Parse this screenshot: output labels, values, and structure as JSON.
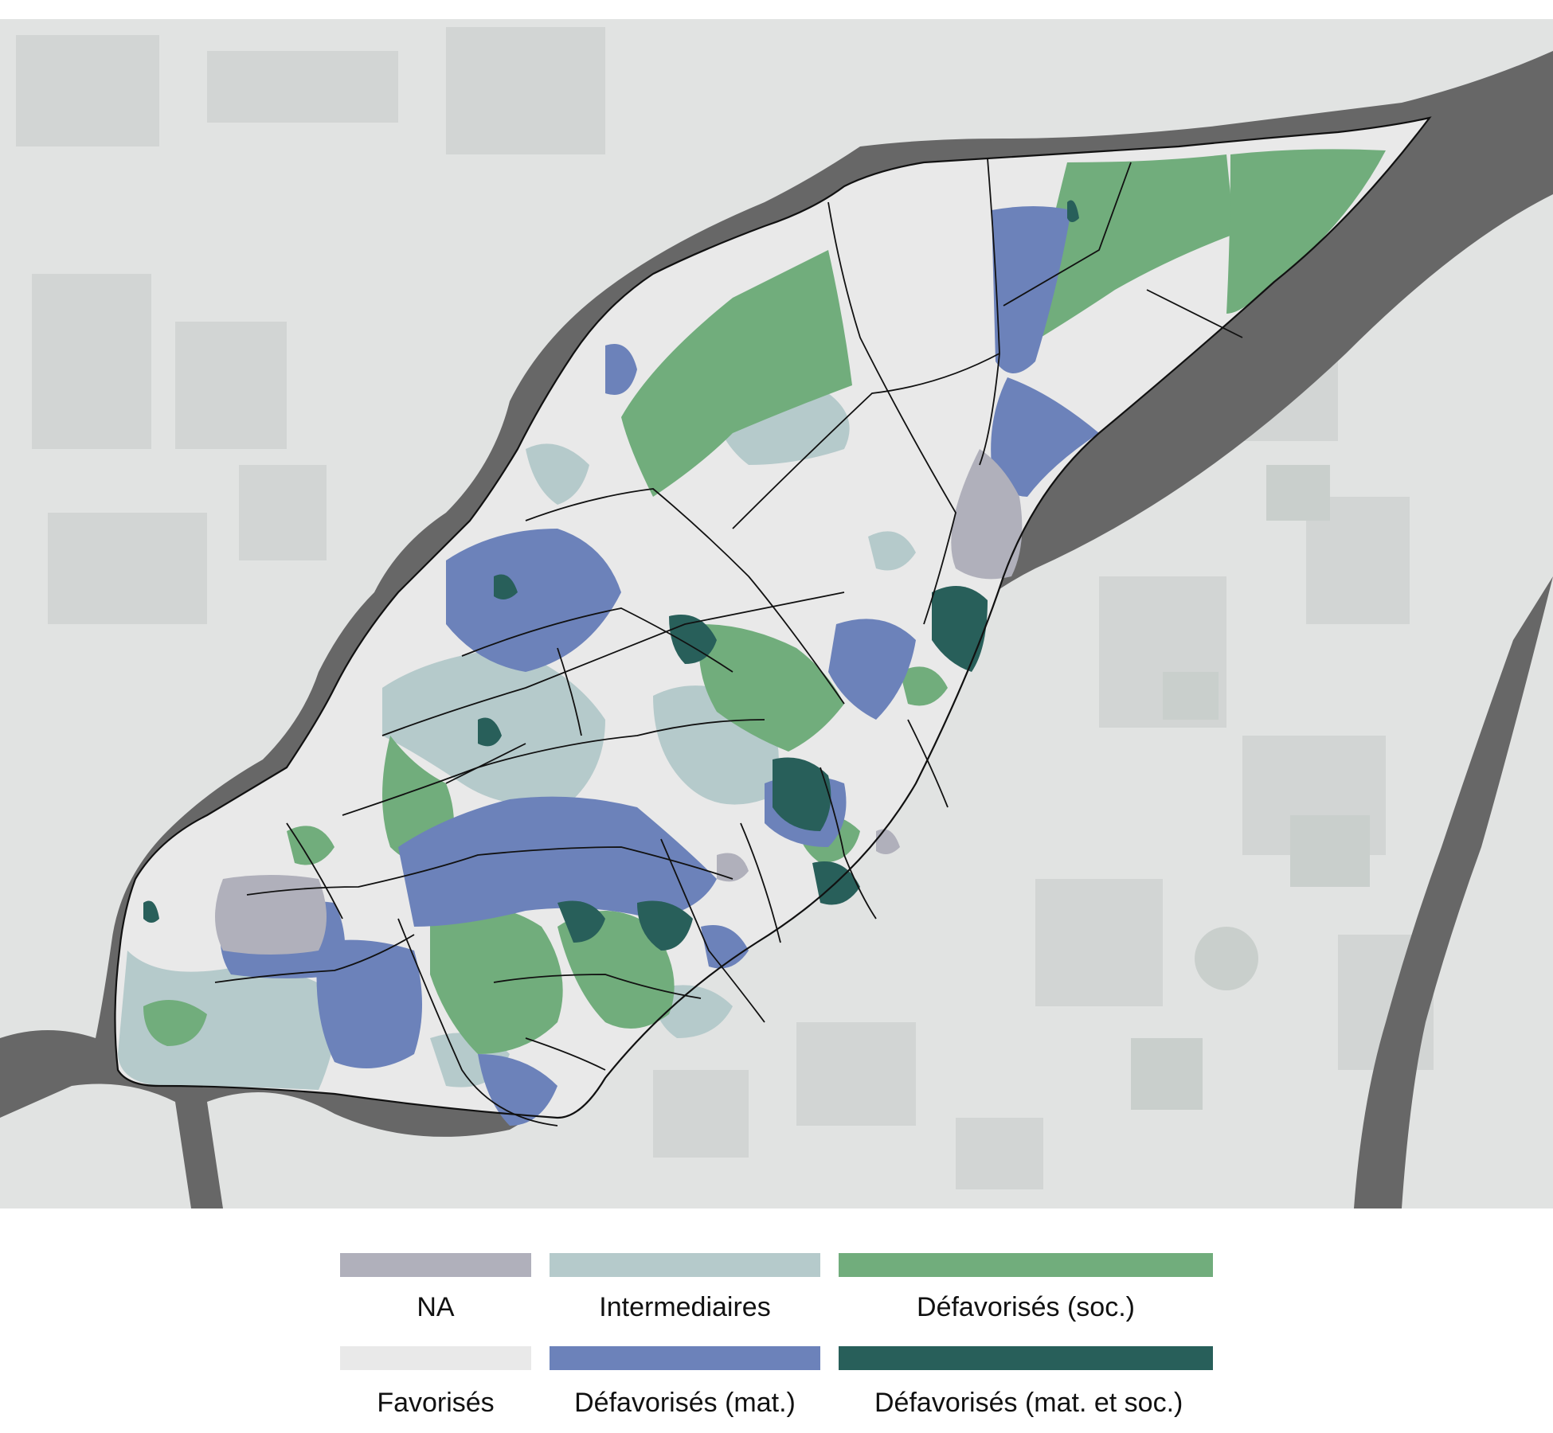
{
  "map": {
    "colors": {
      "land": "#e1e3e2",
      "land_dark": "#d2d5d4",
      "park": "#c9cfcc",
      "water": "#676767",
      "boundary": "#111111"
    }
  },
  "legend": {
    "items": [
      {
        "label": "NA",
        "color": "#b0b0bb"
      },
      {
        "label": "Intermediaires",
        "color": "#b5cacb"
      },
      {
        "label": "Défavorisés (soc.)",
        "color": "#71ad7c"
      },
      {
        "label": "Favorisés",
        "color": "#e9e9e9"
      },
      {
        "label": "Défavorisés (mat.)",
        "color": "#6c82ba"
      },
      {
        "label": "Défavorisés (mat. et soc.)",
        "color": "#285f5a"
      }
    ]
  }
}
